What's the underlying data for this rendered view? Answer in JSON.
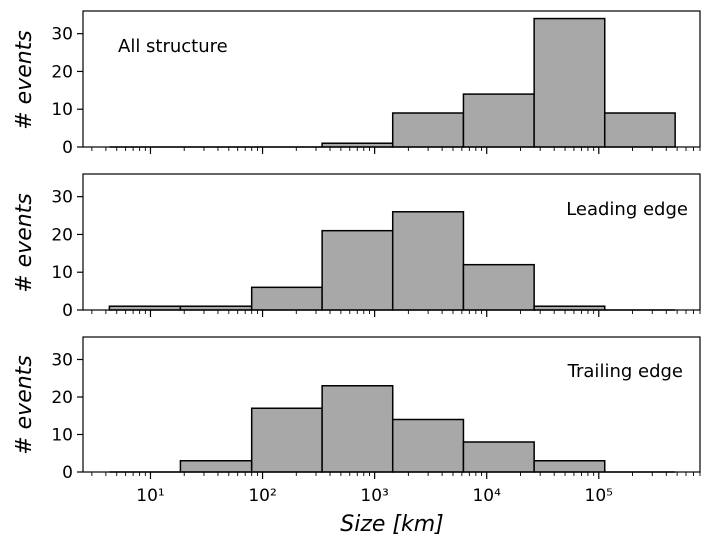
{
  "chart_data": [
    {
      "type": "bar",
      "panel_label": "All structure",
      "ylabel": "# events",
      "ylim": [
        0,
        36
      ],
      "yticks": [
        0,
        10,
        20,
        30
      ],
      "xscale": "log",
      "xlim": [
        2.5,
        800000
      ],
      "bar_color": "#a8a8a8",
      "bins": [
        {
          "x0": 4.3,
          "x1": 18.5,
          "value": 0
        },
        {
          "x0": 18.5,
          "x1": 80,
          "value": 0
        },
        {
          "x0": 80,
          "x1": 340,
          "value": 0
        },
        {
          "x0": 340,
          "x1": 1450,
          "value": 1
        },
        {
          "x0": 1450,
          "x1": 6200,
          "value": 9
        },
        {
          "x0": 6200,
          "x1": 26500,
          "value": 14
        },
        {
          "x0": 26500,
          "x1": 113000,
          "value": 34
        },
        {
          "x0": 113000,
          "x1": 480000,
          "value": 9
        }
      ]
    },
    {
      "type": "bar",
      "panel_label": "Leading edge",
      "ylabel": "# events",
      "ylim": [
        0,
        36
      ],
      "yticks": [
        0,
        10,
        20,
        30
      ],
      "xscale": "log",
      "xlim": [
        2.5,
        800000
      ],
      "bar_color": "#a8a8a8",
      "bins": [
        {
          "x0": 4.3,
          "x1": 18.5,
          "value": 1
        },
        {
          "x0": 18.5,
          "x1": 80,
          "value": 1
        },
        {
          "x0": 80,
          "x1": 340,
          "value": 6
        },
        {
          "x0": 340,
          "x1": 1450,
          "value": 21
        },
        {
          "x0": 1450,
          "x1": 6200,
          "value": 26
        },
        {
          "x0": 6200,
          "x1": 26500,
          "value": 12
        },
        {
          "x0": 26500,
          "x1": 113000,
          "value": 1
        },
        {
          "x0": 113000,
          "x1": 480000,
          "value": 0
        }
      ]
    },
    {
      "type": "bar",
      "panel_label": "Trailing edge",
      "ylabel": "# events",
      "xlabel": "Size [km]",
      "ylim": [
        0,
        36
      ],
      "yticks": [
        0,
        10,
        20,
        30
      ],
      "xscale": "log",
      "xlim": [
        2.5,
        800000
      ],
      "xticks": [
        {
          "value": 10,
          "label": "10¹"
        },
        {
          "value": 100,
          "label": "10²"
        },
        {
          "value": 1000,
          "label": "10³"
        },
        {
          "value": 10000,
          "label": "10⁴"
        },
        {
          "value": 100000,
          "label": "10⁵"
        }
      ],
      "bar_color": "#a8a8a8",
      "bins": [
        {
          "x0": 4.3,
          "x1": 18.5,
          "value": 0
        },
        {
          "x0": 18.5,
          "x1": 80,
          "value": 3
        },
        {
          "x0": 80,
          "x1": 340,
          "value": 17
        },
        {
          "x0": 340,
          "x1": 1450,
          "value": 23
        },
        {
          "x0": 1450,
          "x1": 6200,
          "value": 14
        },
        {
          "x0": 6200,
          "x1": 26500,
          "value": 8
        },
        {
          "x0": 26500,
          "x1": 113000,
          "value": 3
        },
        {
          "x0": 113000,
          "x1": 480000,
          "value": 0
        }
      ]
    }
  ]
}
